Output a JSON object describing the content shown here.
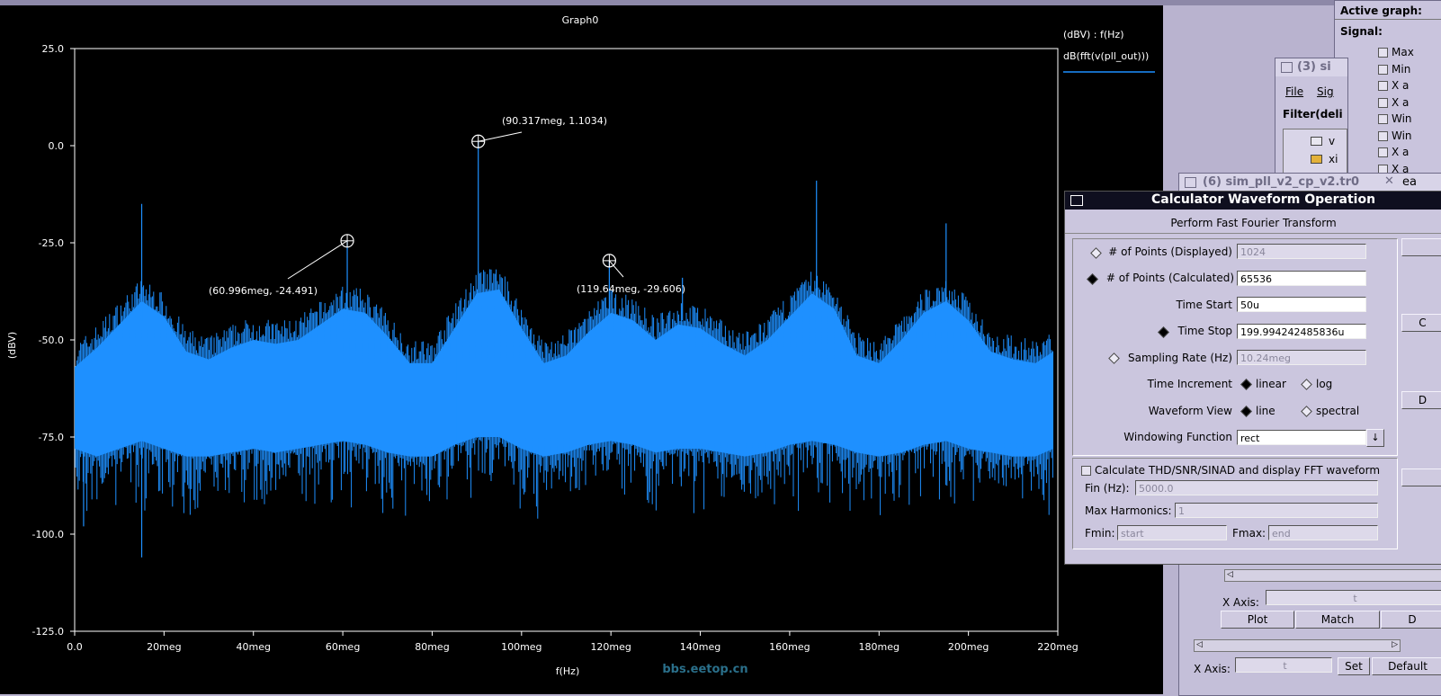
{
  "graph": {
    "title": "Graph0",
    "y_label": "(dBV)",
    "x_label": "f(Hz)",
    "legend_header": "(dBV) : f(Hz)",
    "legend_trace": "dB(fft(v(pll_out)))",
    "watermark": "bbs.eetop.cn"
  },
  "chart_data": {
    "type": "line",
    "title": "Graph0",
    "xlabel": "f(Hz)",
    "ylabel": "(dBV)",
    "xlim": [
      0,
      220
    ],
    "ylim": [
      -125,
      25
    ],
    "x_ticks": [
      "0.0",
      "20meg",
      "40meg",
      "60meg",
      "80meg",
      "100meg",
      "120meg",
      "140meg",
      "160meg",
      "180meg",
      "200meg",
      "220meg"
    ],
    "y_ticks": [
      "25.0",
      "0.0",
      "-25.0",
      "-50.0",
      "-75.0",
      "-100.0",
      "-125.0"
    ],
    "series": [
      {
        "name": "dB(fft(v(pll_out)))",
        "color": "#1e90ff"
      }
    ],
    "envelope": {
      "x": [
        0,
        5,
        10,
        15,
        20,
        25,
        30,
        35,
        40,
        45,
        50,
        55,
        60,
        65,
        70,
        75,
        80,
        85,
        90,
        95,
        100,
        105,
        110,
        115,
        120,
        125,
        130,
        135,
        140,
        145,
        150,
        155,
        160,
        165,
        170,
        175,
        180,
        185,
        190,
        195,
        200,
        205,
        210,
        215,
        219
      ],
      "upper": [
        -57,
        -52,
        -46,
        -40,
        -44,
        -53,
        -55,
        -52,
        -50,
        -51,
        -50,
        -46,
        -42,
        -43,
        -49,
        -56,
        -56,
        -47,
        -38,
        -37,
        -47,
        -56,
        -54,
        -48,
        -43,
        -45,
        -50,
        -46,
        -47,
        -51,
        -54,
        -50,
        -44,
        -38,
        -42,
        -54,
        -56,
        -50,
        -43,
        -40,
        -45,
        -53,
        -55,
        -56,
        -53
      ],
      "lower": [
        -78,
        -80,
        -78,
        -76,
        -78,
        -80,
        -80,
        -79,
        -78,
        -79,
        -78,
        -77,
        -76,
        -77,
        -79,
        -80,
        -80,
        -77,
        -75,
        -75,
        -78,
        -80,
        -79,
        -77,
        -76,
        -77,
        -79,
        -78,
        -78,
        -79,
        -80,
        -79,
        -77,
        -76,
        -77,
        -79,
        -80,
        -79,
        -77,
        -76,
        -78,
        -79,
        -80,
        -80,
        -78
      ]
    },
    "spikes": [
      {
        "x": 15.0,
        "y": -15
      },
      {
        "x": 60.996,
        "y": -24.491
      },
      {
        "x": 90.317,
        "y": 1.1034
      },
      {
        "x": 119.64,
        "y": -29.606
      },
      {
        "x": 136.0,
        "y": -34
      },
      {
        "x": 166.0,
        "y": -9
      },
      {
        "x": 195.0,
        "y": -20
      },
      {
        "x": 15.0,
        "y": -106,
        "down": true
      },
      {
        "x": 2.0,
        "y": -98,
        "down": true
      }
    ],
    "markers": [
      {
        "x": 60.996,
        "y": -24.491,
        "label": "(60.996meg, -24.491)"
      },
      {
        "x": 90.317,
        "y": 1.1034,
        "label": "(90.317meg, 1.1034)"
      },
      {
        "x": 119.64,
        "y": -29.606,
        "label": "(119.64meg, -29.606)"
      }
    ]
  },
  "side": {
    "active_graph_label": "Active graph:",
    "signal_label": "Signal:",
    "checks": [
      "Max",
      "Min",
      "X a",
      "X a",
      "Win",
      "Win",
      "X a",
      "X a"
    ],
    "win3_title": "(3) si",
    "win3_menu": [
      "File",
      "Sig"
    ],
    "win3_filter": "Filter(deli",
    "win3_tree": [
      "v",
      "xi"
    ],
    "win6_title": "(6) sim_pll_v2_cp_v2.tr0",
    "win6_tail": "ea",
    "xaxis_label": "X Axis:",
    "xaxis_value": "t",
    "plot_btn": "Plot",
    "match_btn": "Match",
    "d_btn": "D",
    "bottom_xaxis_label": "X Axis:",
    "bottom_xaxis_value": "t",
    "set_btn": "Set",
    "default_btn": "Default"
  },
  "calc": {
    "title": "Calculator Waveform Operation",
    "subtitle": "Perform Fast Fourier Transform",
    "points_displayed_label": "# of Points (Displayed)",
    "points_displayed": "1024",
    "points_calc_label": "# of Points (Calculated)",
    "points_calc": "65536",
    "time_start_label": "Time Start",
    "time_start": "50u",
    "time_stop_label": "Time Stop",
    "time_stop": "199.994242485836u",
    "sampling_label": "Sampling Rate (Hz)",
    "sampling": "10.24meg",
    "time_inc_label": "Time Increment",
    "inc_linear": "linear",
    "inc_log": "log",
    "wave_view_label": "Waveform View",
    "view_line": "line",
    "view_spectral": "spectral",
    "window_label": "Windowing Function",
    "window_value": "rect",
    "thd_label": "Calculate THD/SNR/SINAD and display FFT waveform",
    "fin_label": "Fin (Hz):",
    "fin_value": "5000.0",
    "maxh_label": "Max Harmonics:",
    "maxh_value": "1",
    "fmin_label": "Fmin:",
    "fmin_value": "start",
    "fmax_label": "Fmax:",
    "fmax_value": "end",
    "side_btn_c": "C",
    "side_btn_d": "D"
  }
}
